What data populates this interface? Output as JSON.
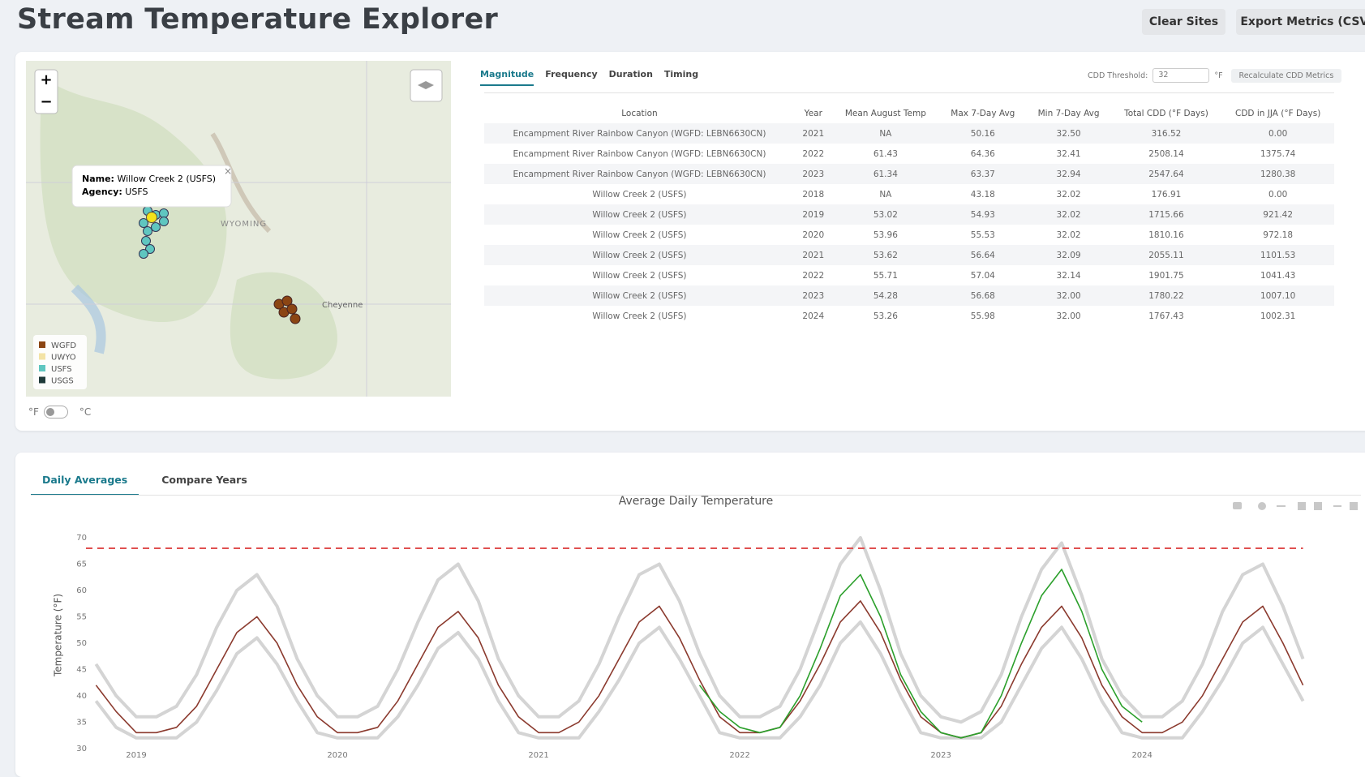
{
  "header": {
    "title": "Stream Temperature Explorer",
    "buttons": [
      "Clear Sites",
      "Export Metrics (CSV)"
    ]
  },
  "map": {
    "zoom": [
      "+",
      "−"
    ],
    "labels": [
      "WYOMING",
      "Cheyenne"
    ],
    "popup": {
      "name_label": "Name:",
      "name": "Willow Creek 2 (USFS)",
      "agency_label": "Agency:",
      "agency": "USFS"
    },
    "legend": [
      {
        "name": "WGFD",
        "color": "#8b4513"
      },
      {
        "name": "UWYO",
        "color": "#f3e3a6"
      },
      {
        "name": "USFS",
        "color": "#5fc6c0"
      },
      {
        "name": "USGS",
        "color": "#1f3a3a"
      }
    ],
    "units": [
      "°F",
      "°C"
    ]
  },
  "metrics": {
    "tabs": [
      "Magnitude",
      "Frequency",
      "Duration",
      "Timing"
    ],
    "threshold_label": "CDD Threshold:",
    "threshold": "32",
    "threshold_unit": "°F",
    "recalculate": "Recalculate CDD Metrics"
  },
  "table": {
    "columns": [
      "Location",
      "Year",
      "Mean August Temp",
      "Max 7-Day Avg",
      "Min 7-Day Avg",
      "Total CDD (°F Days)",
      "CDD in JJA (°F Days)"
    ],
    "rows": [
      [
        "Encampment River Rainbow Canyon (WGFD: LEBN6630CN)",
        "2021",
        "NA",
        "50.16",
        "32.50",
        "316.52",
        "0.00"
      ],
      [
        "Encampment River Rainbow Canyon (WGFD: LEBN6630CN)",
        "2022",
        "61.43",
        "64.36",
        "32.41",
        "2508.14",
        "1375.74"
      ],
      [
        "Encampment River Rainbow Canyon (WGFD: LEBN6630CN)",
        "2023",
        "61.34",
        "63.37",
        "32.94",
        "2547.64",
        "1280.38"
      ],
      [
        "Willow Creek 2 (USFS)",
        "2018",
        "NA",
        "43.18",
        "32.02",
        "176.91",
        "0.00"
      ],
      [
        "Willow Creek 2 (USFS)",
        "2019",
        "53.02",
        "54.93",
        "32.02",
        "1715.66",
        "921.42"
      ],
      [
        "Willow Creek 2 (USFS)",
        "2020",
        "53.96",
        "55.53",
        "32.02",
        "1810.16",
        "972.18"
      ],
      [
        "Willow Creek 2 (USFS)",
        "2021",
        "53.62",
        "56.64",
        "32.09",
        "2055.11",
        "1101.53"
      ],
      [
        "Willow Creek 2 (USFS)",
        "2022",
        "55.71",
        "57.04",
        "32.14",
        "1901.75",
        "1041.43"
      ],
      [
        "Willow Creek 2 (USFS)",
        "2023",
        "54.28",
        "56.68",
        "32.00",
        "1780.22",
        "1007.10"
      ],
      [
        "Willow Creek 2 (USFS)",
        "2024",
        "53.26",
        "55.98",
        "32.00",
        "1767.43",
        "1002.31"
      ]
    ]
  },
  "plots": {
    "tabs": [
      "Daily Averages",
      "Compare Years"
    ]
  },
  "chart_data": {
    "type": "line",
    "title": "Average Daily Temperature",
    "y_label": "Temperature (°F)",
    "x": [
      2018.8,
      2018.9,
      2019,
      2019.1,
      2019.2,
      2019.3,
      2019.4,
      2019.5,
      2019.6,
      2019.7,
      2019.8,
      2019.9,
      2020,
      2020.1,
      2020.2,
      2020.3,
      2020.4,
      2020.5,
      2020.6,
      2020.7,
      2020.8,
      2020.9,
      2021,
      2021.1,
      2021.2,
      2021.3,
      2021.4,
      2021.5,
      2021.6,
      2021.7,
      2021.8,
      2021.9,
      2022,
      2022.1,
      2022.2,
      2022.3,
      2022.4,
      2022.5,
      2022.6,
      2022.7,
      2022.8,
      2022.9,
      2023,
      2023.1,
      2023.2,
      2023.3,
      2023.4,
      2023.5,
      2023.6,
      2023.7,
      2023.8,
      2023.9,
      2024,
      2024.1,
      2024.2,
      2024.3,
      2024.4,
      2024.5,
      2024.6,
      2024.7,
      2024.8
    ],
    "xlim": [
      2018.75,
      2024.85
    ],
    "xticks": [
      2019,
      2020,
      2021,
      2022,
      2023,
      2024
    ],
    "ylim": [
      29.5,
      71
    ],
    "yticks": [
      30,
      35,
      40,
      45,
      50,
      55,
      60,
      65,
      70
    ],
    "grid": false,
    "series": [
      {
        "color": "#d4d4d4",
        "width": 4,
        "values": [
          46,
          40,
          36,
          36,
          38,
          44,
          53,
          60,
          63,
          57,
          47,
          40,
          36,
          36,
          38,
          45,
          54,
          62,
          65,
          58,
          47,
          40,
          36,
          36,
          39,
          46,
          55,
          63,
          65,
          58,
          48,
          40,
          36,
          36,
          38,
          45,
          55,
          65,
          70,
          60,
          48,
          40,
          36,
          35,
          37,
          44,
          55,
          64,
          69,
          59,
          47,
          40,
          36,
          36,
          39,
          46,
          56,
          63,
          65,
          57,
          47
        ]
      },
      {
        "color": "#d4d4d4",
        "width": 4,
        "values": [
          39,
          34,
          32,
          32,
          32,
          35,
          41,
          48,
          51,
          46,
          39,
          33,
          32,
          32,
          32,
          36,
          42,
          49,
          52,
          47,
          39,
          33,
          32,
          32,
          32,
          37,
          43,
          50,
          53,
          47,
          40,
          33,
          32,
          32,
          32,
          36,
          42,
          50,
          54,
          48,
          40,
          33,
          32,
          32,
          32,
          35,
          42,
          49,
          53,
          47,
          39,
          33,
          32,
          32,
          32,
          37,
          43,
          50,
          53,
          46,
          39
        ]
      },
      {
        "color": "#8b3a2e",
        "width": 1.6,
        "values": [
          42,
          37,
          33,
          33,
          34,
          38,
          45,
          52,
          55,
          50,
          42,
          36,
          33,
          33,
          34,
          39,
          46,
          53,
          56,
          51,
          42,
          36,
          33,
          33,
          35,
          40,
          47,
          54,
          57,
          51,
          43,
          36,
          33,
          33,
          34,
          39,
          46,
          54,
          58,
          52,
          43,
          36,
          33,
          32,
          33,
          38,
          46,
          53,
          57,
          51,
          42,
          36,
          33,
          33,
          35,
          40,
          47,
          54,
          57,
          50,
          42
        ]
      },
      {
        "color": "#2ca02c",
        "width": 1.6,
        "values": [
          null,
          null,
          null,
          null,
          null,
          null,
          null,
          null,
          null,
          null,
          null,
          null,
          null,
          null,
          null,
          null,
          null,
          null,
          null,
          null,
          null,
          null,
          null,
          null,
          null,
          null,
          null,
          null,
          null,
          null,
          42,
          37,
          34,
          33,
          34,
          40,
          49,
          59,
          63,
          55,
          44,
          37,
          33,
          32,
          33,
          40,
          50,
          59,
          64,
          56,
          45,
          38,
          35,
          null,
          null,
          null,
          null,
          null,
          null,
          null,
          null
        ]
      }
    ],
    "threshold": {
      "value": 68,
      "color": "#e05050",
      "dashed": true
    }
  }
}
